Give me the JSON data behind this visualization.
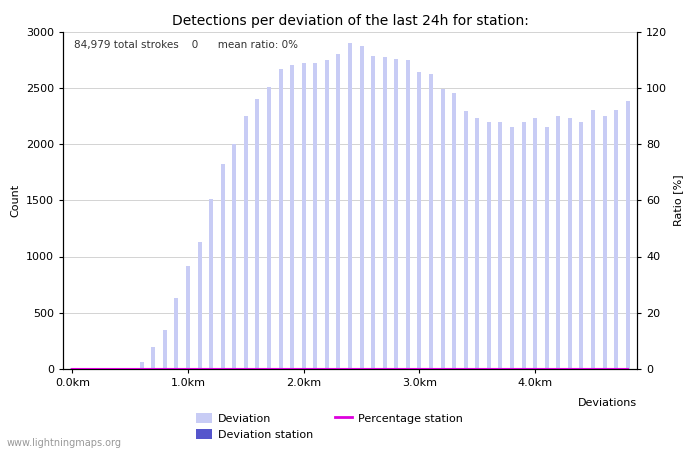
{
  "title": "Detections per deviation of the last 24h for station:",
  "subtitle": "84,979 total strokes    0      mean ratio: 0%",
  "xlabel": "Deviations",
  "ylabel_left": "Count",
  "ylabel_right": "Ratio [%]",
  "ylim_left": [
    0,
    3000
  ],
  "ylim_right": [
    0,
    120
  ],
  "yticks_left": [
    0,
    500,
    1000,
    1500,
    2000,
    2500,
    3000
  ],
  "yticks_right": [
    0,
    20,
    40,
    60,
    80,
    100,
    120
  ],
  "xtick_labels": [
    "0.0km",
    "1.0km",
    "2.0km",
    "3.0km",
    "4.0km"
  ],
  "xtick_positions": [
    0,
    10,
    20,
    30,
    40
  ],
  "bar_width": 0.35,
  "bar_color_deviation": "#c8ccf5",
  "bar_color_station": "#5555cc",
  "line_color_percentage": "#dd00dd",
  "background_color": "#ffffff",
  "grid_color": "#cccccc",
  "watermark": "www.lightningmaps.org",
  "n_bars": 49,
  "deviation_values": [
    5,
    5,
    5,
    5,
    5,
    5,
    60,
    200,
    350,
    630,
    920,
    1130,
    1510,
    1820,
    2000,
    2250,
    2400,
    2510,
    2670,
    2700,
    2720,
    2720,
    2750,
    2800,
    2900,
    2870,
    2780,
    2770,
    2760,
    2750,
    2640,
    2620,
    2490,
    2450,
    2290,
    2230,
    2200,
    2200,
    2150,
    2200,
    2230,
    2150,
    2250,
    2230,
    2200,
    2300,
    2250,
    2300,
    2380
  ],
  "station_values": [
    0,
    0,
    0,
    0,
    0,
    0,
    0,
    0,
    0,
    0,
    0,
    0,
    0,
    0,
    0,
    0,
    0,
    0,
    0,
    0,
    0,
    0,
    0,
    0,
    0,
    0,
    0,
    0,
    0,
    0,
    0,
    0,
    0,
    0,
    0,
    0,
    0,
    0,
    0,
    0,
    0,
    0,
    0,
    0,
    0,
    0,
    0,
    0,
    0
  ],
  "percentage_values": [
    0,
    0,
    0,
    0,
    0,
    0,
    0,
    0,
    0,
    0,
    0,
    0,
    0,
    0,
    0,
    0,
    0,
    0,
    0,
    0,
    0,
    0,
    0,
    0,
    0,
    0,
    0,
    0,
    0,
    0,
    0,
    0,
    0,
    0,
    0,
    0,
    0,
    0,
    0,
    0,
    0,
    0,
    0,
    0,
    0,
    0,
    0,
    0,
    0
  ],
  "title_fontsize": 10,
  "axis_fontsize": 8,
  "tick_fontsize": 8,
  "subtitle_fontsize": 7.5,
  "watermark_fontsize": 7
}
